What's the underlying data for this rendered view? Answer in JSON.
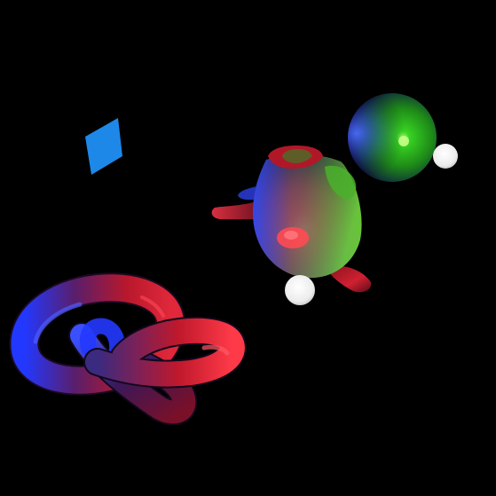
{
  "scene": {
    "background": "#000000",
    "objects": [
      {
        "name": "blue-quad",
        "kind": "quad",
        "color": "#1e88e8"
      },
      {
        "name": "green-sphere",
        "kind": "sphere",
        "base_color": "#1b8a16",
        "highlight_color": "#7dff5a",
        "rim_color": "#3a5bff"
      },
      {
        "name": "light-source-right",
        "kind": "light-sphere",
        "color": "#f2f2f2"
      },
      {
        "name": "teapot",
        "kind": "mesh",
        "primary_color": "#e0202c",
        "secondary_color": "#46b82a",
        "rim_color": "#2f4dff"
      },
      {
        "name": "light-source-center",
        "kind": "light-sphere",
        "color": "#f2f2f2"
      },
      {
        "name": "torus-knot",
        "kind": "mesh",
        "primary_color": "#c4182a",
        "rim_color": "#2a3cff"
      }
    ]
  }
}
